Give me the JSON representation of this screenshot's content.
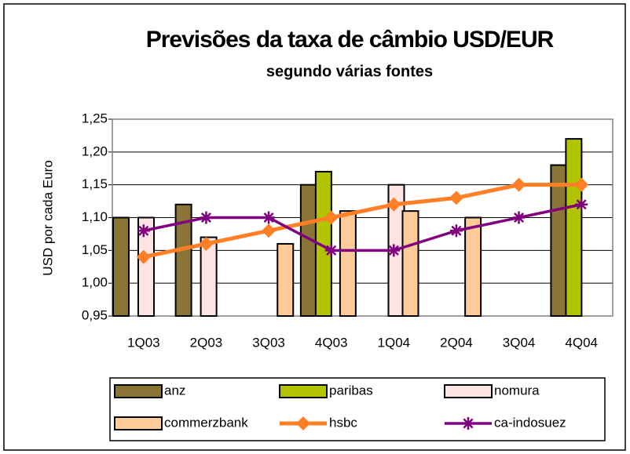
{
  "chart_data": {
    "type": "bar",
    "title": "Previsões da taxa de câmbio USD/EUR",
    "subtitle": "segundo várias fontes",
    "ylabel": "USD por cada Euro",
    "categories": [
      "1Q03",
      "2Q03",
      "3Q03",
      "4Q03",
      "1Q04",
      "2Q04",
      "3Q04",
      "4Q04"
    ],
    "ylim": [
      0.95,
      1.25
    ],
    "yticks": [
      {
        "value": 0.95,
        "label": "0,95"
      },
      {
        "value": 1.0,
        "label": "1,00"
      },
      {
        "value": 1.05,
        "label": "1,05"
      },
      {
        "value": 1.1,
        "label": "1,10"
      },
      {
        "value": 1.15,
        "label": "1,15"
      },
      {
        "value": 1.2,
        "label": "1,20"
      },
      {
        "value": 1.25,
        "label": "1,25"
      }
    ],
    "grid": true,
    "series": [
      {
        "name": "anz",
        "type": "bar",
        "color": "#8b7536",
        "values": [
          1.1,
          1.12,
          null,
          1.15,
          null,
          null,
          null,
          1.18
        ]
      },
      {
        "name": "paribas",
        "type": "bar",
        "color": "#b2c400",
        "values": [
          null,
          null,
          null,
          1.17,
          null,
          null,
          null,
          1.22
        ]
      },
      {
        "name": "nomura",
        "type": "bar",
        "color": "#ffe4e4",
        "values": [
          1.1,
          1.07,
          null,
          null,
          1.15,
          null,
          null,
          null
        ]
      },
      {
        "name": "commerzbank",
        "type": "bar",
        "color": "#ffcc99",
        "values": [
          null,
          null,
          1.06,
          1.11,
          1.11,
          1.1,
          null,
          null
        ]
      },
      {
        "name": "hsbc",
        "type": "line",
        "color": "#ff7f27",
        "values": [
          1.04,
          1.06,
          1.08,
          1.1,
          1.12,
          1.13,
          1.15,
          1.15
        ]
      },
      {
        "name": "ca-indosuez",
        "type": "line",
        "color": "#800080",
        "values": [
          1.08,
          1.1,
          1.1,
          1.05,
          1.05,
          1.08,
          1.1,
          1.12
        ]
      }
    ]
  }
}
